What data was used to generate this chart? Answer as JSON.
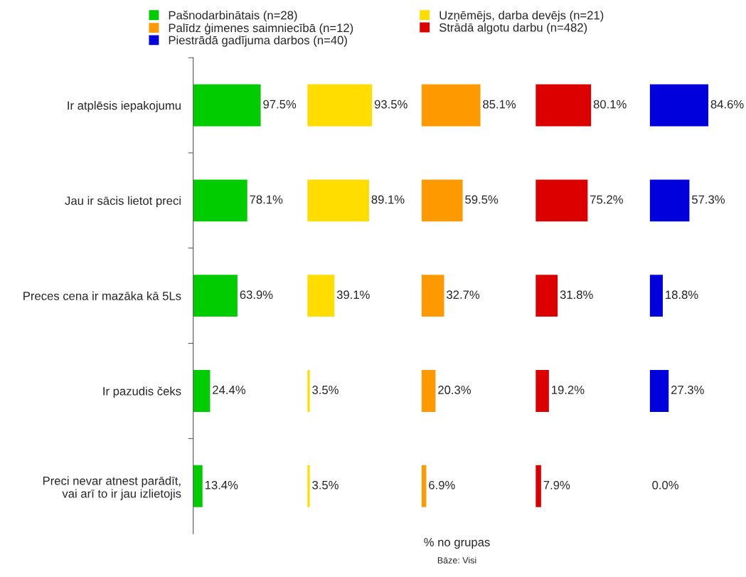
{
  "chart_data": [
    {
      "type": "bar",
      "orientation": "horizontal",
      "categories": [
        "Ir atplēsis iepakojumu",
        "Jau ir sācis lietot preci",
        "Preces cena ir mazāka kā 5Ls",
        "Ir pazudis čeks",
        "Preci nevar atnest parādīt, vai arī to ir jau izlietojis"
      ],
      "series": [
        {
          "name": "Pašnodarbinātais (n=28)",
          "color": "#00cc00",
          "values": [
            97.5,
            78.1,
            63.9,
            24.4,
            13.4
          ],
          "value_labels": [
            "97.5%",
            "78.1%",
            "63.9%",
            "24.4%",
            "13.4%"
          ]
        }
      ],
      "tick_labels": "y",
      "legend": "top"
    },
    {
      "type": "bar",
      "orientation": "horizontal",
      "categories": [
        null,
        null,
        null,
        null,
        null
      ],
      "series": [
        {
          "name": "Uzņēmējs, darba devējs (n=21)",
          "color": "#ffdd00",
          "values": [
            93.5,
            89.1,
            39.1,
            3.5,
            3.5
          ],
          "value_labels": [
            "93.5%",
            "89.1%",
            "39.1%",
            "3.5%",
            "3.5%"
          ]
        }
      ],
      "tick_labels": false,
      "legend": "top"
    },
    {
      "type": "bar",
      "orientation": "horizontal",
      "categories": [
        null,
        null,
        null,
        null,
        null
      ],
      "series": [
        {
          "name": "Palīdz ģimenes saimniecībā (n=12)",
          "color": "#ff9900",
          "values": [
            85.1,
            59.5,
            32.7,
            20.3,
            6.9
          ],
          "value_labels": [
            "85.1%",
            "59.5%",
            "32.7%",
            "20.3%",
            "6.9%"
          ]
        }
      ],
      "tick_labels": false,
      "legend": "top",
      "xlabel": "% no grupas",
      "annotations": [
        "Bāze: Visi"
      ]
    },
    {
      "type": "bar",
      "orientation": "horizontal",
      "categories": [
        null,
        null,
        null,
        null,
        null
      ],
      "series": [
        {
          "name": "Strādā algotu darbu (n=482)",
          "color": "#dd0000",
          "values": [
            80.1,
            75.2,
            31.8,
            19.2,
            7.9
          ],
          "value_labels": [
            "80.1%",
            "75.2%",
            "31.8%",
            "19.2%",
            "7.9%"
          ]
        }
      ],
      "tick_labels": false,
      "legend": "top"
    },
    {
      "type": "bar",
      "orientation": "horizontal",
      "categories": [
        null,
        null,
        null,
        null,
        null
      ],
      "series": [
        {
          "name": "Piestrādā gadījuma darbos (n=40)",
          "color": "#0000dd",
          "values": [
            84.6,
            57.3,
            18.8,
            27.3,
            0.0
          ],
          "value_labels": [
            "84.6%",
            "57.3%",
            "18.8%",
            "27.3%",
            "0.0%"
          ]
        }
      ],
      "tick_labels": false,
      "legend": "top"
    }
  ]
}
